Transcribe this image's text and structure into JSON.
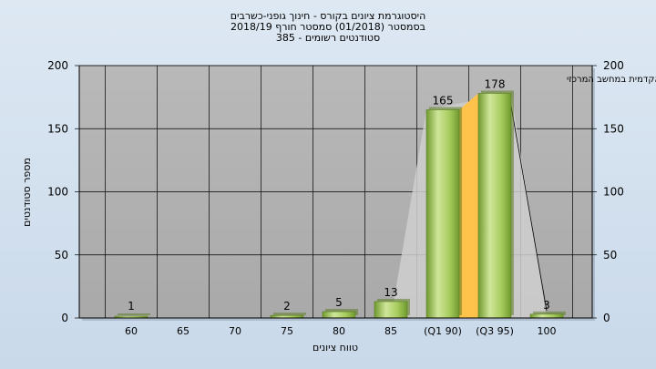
{
  "chart_data": {
    "type": "bar",
    "title_lines": [
      "היסטוגרמת ציונים בקורס - חינוך גופני-כשרבים",
      "בסמסטר  (01/2018)  סמסטר חורף 2018/19",
      "סטודנטים רשומים - 385"
    ],
    "annotation": "במשימה : ציון סופי במערכת האקדמית במחשב המרכזי",
    "categories": [
      "60",
      "65",
      "70",
      "75",
      "80",
      "85",
      "(Q1 90)",
      "(Q3 95)",
      "100"
    ],
    "values": [
      1,
      0,
      0,
      2,
      5,
      13,
      165,
      178,
      3
    ],
    "data_labels": [
      "1",
      "",
      "",
      "2",
      "5",
      "13",
      "165",
      "178",
      "3"
    ],
    "xlabel": "טווח ציונים",
    "ylabel": "מספר סטודנטים",
    "ylim": [
      0,
      200
    ],
    "yticks": [
      0,
      50,
      100,
      150,
      200
    ],
    "grid": true,
    "secondary_y_axis": true,
    "colors": {
      "plot_background": "#b4b4b4",
      "bar_light": "#cfe69a",
      "bar_dark": "#6f9a2e",
      "quartile_fill": "#ffc24a",
      "gridline": "#000000"
    }
  }
}
